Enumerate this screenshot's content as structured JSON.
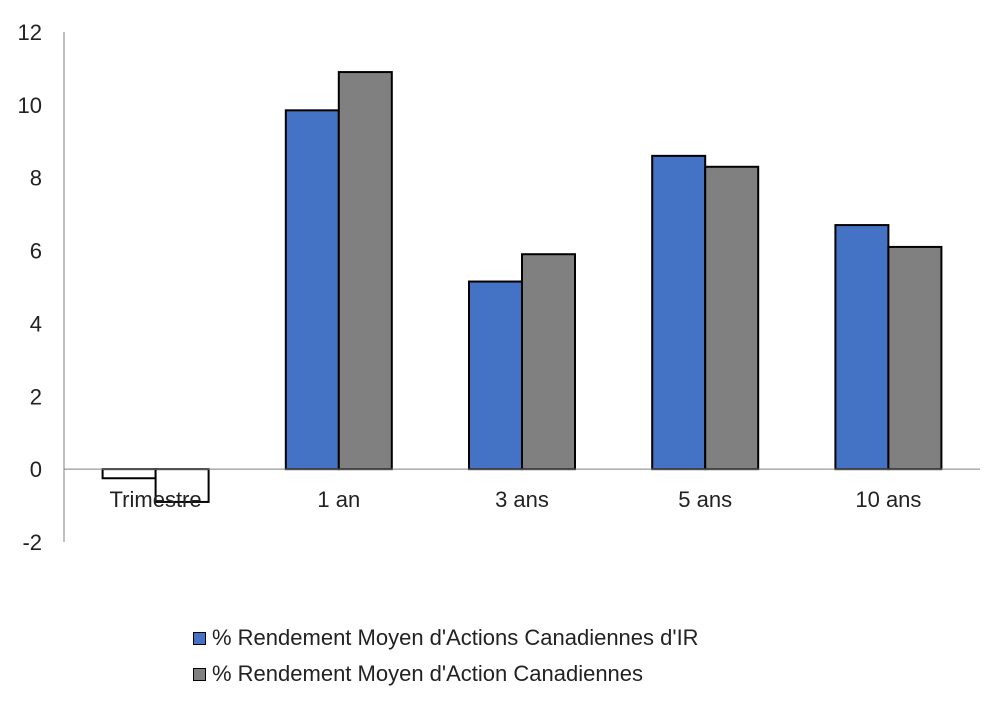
{
  "chart_data": {
    "type": "bar",
    "categories": [
      "Trimestre",
      "1 an",
      "3 ans",
      "5 ans",
      "10 ans"
    ],
    "series": [
      {
        "name": "% Rendement Moyen d'Actions Canadiennes d'IR",
        "color": "#4472C4",
        "negative_color": "#FFFFFF",
        "values": [
          -0.25,
          9.85,
          5.15,
          8.6,
          6.7
        ]
      },
      {
        "name": "% Rendement Moyen d'Action Canadiennes",
        "color": "#808080",
        "negative_color": "#FFFFFF",
        "values": [
          -0.9,
          10.9,
          5.9,
          8.3,
          6.1
        ]
      }
    ],
    "ylim": [
      -2,
      12
    ],
    "yticks": [
      "-2",
      "0",
      "2",
      "4",
      "6",
      "8",
      "10",
      "12"
    ],
    "xlabel": "",
    "ylabel": "",
    "title": "",
    "grid": false,
    "legend_position": "bottom"
  }
}
